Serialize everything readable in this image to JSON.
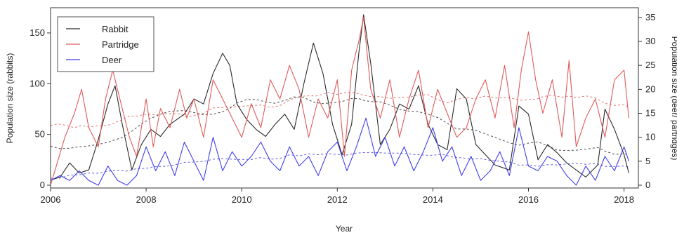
{
  "chart_data": {
    "type": "line",
    "title": "",
    "xlabel": "Year",
    "ylabel_left": "Population size (rabbits)",
    "ylabel_right": "Population size (deer/ partridges)",
    "xlim": [
      2006,
      2018.3
    ],
    "ylim_left": [
      0,
      170
    ],
    "ylim_right": [
      0,
      36
    ],
    "x_ticks": [
      2006,
      2008,
      2010,
      2012,
      2014,
      2016,
      2018
    ],
    "y_ticks_left": [
      0,
      50,
      100,
      150
    ],
    "y_ticks_right": [
      0,
      5,
      10,
      15,
      20,
      25,
      30,
      35
    ],
    "grid": false,
    "legend_position": "top-left",
    "legend": [
      "Rabbit",
      "Partridge",
      "Deer"
    ],
    "series": [
      {
        "name": "Rabbit",
        "axis": "left",
        "color": "#2a2a2a",
        "x": [
          2006.0,
          2006.2,
          2006.4,
          2006.6,
          2006.8,
          2007.0,
          2007.2,
          2007.35,
          2007.5,
          2007.7,
          2007.9,
          2008.1,
          2008.3,
          2008.5,
          2008.8,
          2009.0,
          2009.2,
          2009.4,
          2009.6,
          2009.75,
          2009.9,
          2010.1,
          2010.3,
          2010.5,
          2010.7,
          2010.9,
          2011.1,
          2011.3,
          2011.5,
          2011.7,
          2011.9,
          2012.1,
          2012.3,
          2012.45,
          2012.55,
          2012.7,
          2012.9,
          2013.1,
          2013.3,
          2013.5,
          2013.7,
          2013.9,
          2014.1,
          2014.3,
          2014.5,
          2014.7,
          2014.9,
          2015.1,
          2015.3,
          2015.6,
          2015.8,
          2016.0,
          2016.2,
          2016.4,
          2016.6,
          2016.8,
          2017.0,
          2017.2,
          2017.45,
          2017.6,
          2017.8,
          2018.0,
          2018.1
        ],
        "y": [
          5,
          8,
          22,
          12,
          15,
          45,
          80,
          98,
          60,
          15,
          40,
          55,
          48,
          60,
          70,
          85,
          80,
          110,
          130,
          118,
          80,
          65,
          55,
          48,
          60,
          70,
          55,
          100,
          140,
          110,
          60,
          30,
          60,
          130,
          168,
          120,
          40,
          55,
          80,
          75,
          98,
          60,
          40,
          35,
          95,
          85,
          40,
          30,
          20,
          15,
          78,
          70,
          25,
          40,
          32,
          22,
          15,
          8,
          20,
          75,
          55,
          30,
          12
        ]
      },
      {
        "name": "Partridge",
        "axis": "right",
        "color": "#e05a5a",
        "x": [
          2006.0,
          2006.15,
          2006.3,
          2006.5,
          2006.65,
          2006.8,
          2007.0,
          2007.15,
          2007.3,
          2007.5,
          2007.65,
          2007.8,
          2008.0,
          2008.15,
          2008.3,
          2008.5,
          2008.7,
          2008.85,
          2009.0,
          2009.2,
          2009.4,
          2009.6,
          2009.8,
          2010.0,
          2010.2,
          2010.4,
          2010.6,
          2010.8,
          2011.0,
          2011.2,
          2011.4,
          2011.6,
          2011.8,
          2012.0,
          2012.15,
          2012.3,
          2012.45,
          2012.55,
          2012.7,
          2012.9,
          2013.1,
          2013.3,
          2013.5,
          2013.7,
          2013.9,
          2014.1,
          2014.3,
          2014.5,
          2014.7,
          2014.9,
          2015.1,
          2015.3,
          2015.5,
          2015.7,
          2015.85,
          2016.0,
          2016.15,
          2016.3,
          2016.5,
          2016.7,
          2016.85,
          2017.0,
          2017.2,
          2017.4,
          2017.6,
          2017.8,
          2018.0,
          2018.1
        ],
        "y": [
          0,
          5,
          10,
          15,
          20,
          12,
          8,
          18,
          24,
          16,
          10,
          6,
          18,
          8,
          16,
          12,
          20,
          14,
          18,
          10,
          22,
          18,
          14,
          10,
          17,
          12,
          22,
          18,
          25,
          20,
          10,
          18,
          14,
          22,
          6,
          24,
          30,
          35,
          20,
          14,
          22,
          10,
          18,
          24,
          12,
          20,
          15,
          10,
          12,
          18,
          22,
          14,
          25,
          12,
          24,
          32,
          22,
          15,
          22,
          10,
          26,
          8,
          14,
          18,
          10,
          22,
          24,
          14
        ]
      },
      {
        "name": "Deer",
        "axis": "right",
        "color": "#3f3fe8",
        "x": [
          2006.0,
          2006.2,
          2006.4,
          2006.6,
          2006.8,
          2007.0,
          2007.2,
          2007.4,
          2007.6,
          2007.8,
          2008.0,
          2008.2,
          2008.4,
          2008.6,
          2008.8,
          2009.0,
          2009.2,
          2009.4,
          2009.6,
          2009.8,
          2010.0,
          2010.2,
          2010.4,
          2010.6,
          2010.8,
          2011.0,
          2011.2,
          2011.4,
          2011.6,
          2011.8,
          2012.0,
          2012.2,
          2012.4,
          2012.6,
          2012.8,
          2013.0,
          2013.2,
          2013.4,
          2013.6,
          2013.8,
          2014.0,
          2014.2,
          2014.4,
          2014.6,
          2014.8,
          2015.0,
          2015.2,
          2015.4,
          2015.6,
          2015.8,
          2016.0,
          2016.2,
          2016.4,
          2016.6,
          2016.8,
          2017.0,
          2017.2,
          2017.4,
          2017.6,
          2017.8,
          2018.0,
          2018.1
        ],
        "y": [
          1,
          2,
          1,
          3,
          1,
          0,
          4,
          1,
          0,
          2,
          8,
          3,
          7,
          2,
          9,
          5,
          1,
          10,
          3,
          7,
          4,
          6,
          9,
          5,
          3,
          8,
          4,
          6,
          2,
          7,
          9,
          3,
          8,
          14,
          6,
          10,
          4,
          8,
          3,
          7,
          12,
          5,
          8,
          2,
          6,
          1,
          3,
          7,
          2,
          12,
          4,
          3,
          6,
          5,
          2,
          0,
          4,
          1,
          6,
          3,
          8,
          5
        ]
      }
    ]
  }
}
